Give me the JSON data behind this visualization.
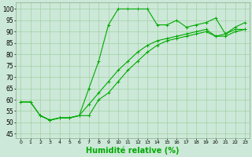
{
  "bg_color": "#cce8d8",
  "grid_color": "#99cc99",
  "line_color": "#00aa00",
  "xlabel": "Humidité relative (%)",
  "xlabel_fontsize": 7,
  "ylabel_ticks": [
    45,
    50,
    55,
    60,
    65,
    70,
    75,
    80,
    85,
    90,
    95,
    100
  ],
  "xlim": [
    -0.5,
    23.5
  ],
  "ylim": [
    43,
    103
  ],
  "xticks": [
    0,
    1,
    2,
    3,
    4,
    5,
    6,
    7,
    8,
    9,
    10,
    11,
    12,
    13,
    14,
    15,
    16,
    17,
    18,
    19,
    20,
    21,
    22,
    23
  ],
  "curve1_x": [
    0,
    1,
    2,
    3,
    4,
    5,
    6,
    7,
    8,
    9,
    10,
    11,
    12,
    13,
    14,
    15,
    16,
    17,
    18,
    19,
    20,
    21,
    22,
    23
  ],
  "curve1_y": [
    59,
    59,
    53,
    51,
    52,
    52,
    53,
    65,
    77,
    93,
    100,
    100,
    100,
    100,
    93,
    93,
    95,
    92,
    93,
    94,
    96,
    89,
    92,
    94
  ],
  "curve2_x": [
    2,
    3,
    4,
    5,
    6,
    7,
    8,
    9,
    10,
    11,
    12,
    13,
    14,
    15,
    16,
    17,
    18,
    19,
    20,
    21,
    22,
    23
  ],
  "curve2_y": [
    53,
    51,
    52,
    52,
    53,
    53,
    60,
    63,
    68,
    73,
    77,
    81,
    84,
    86,
    87,
    88,
    89,
    90,
    88,
    88,
    90,
    91
  ],
  "curve3_x": [
    0,
    1,
    2,
    3,
    4,
    5,
    6,
    7,
    8,
    9,
    10,
    11,
    12,
    13,
    14,
    15,
    16,
    17,
    18,
    19,
    20,
    21,
    22,
    23
  ],
  "curve3_y": [
    59,
    59,
    53,
    51,
    52,
    52,
    53,
    58,
    63,
    68,
    73,
    77,
    81,
    84,
    86,
    87,
    88,
    89,
    90,
    91,
    88,
    89,
    91,
    91
  ]
}
